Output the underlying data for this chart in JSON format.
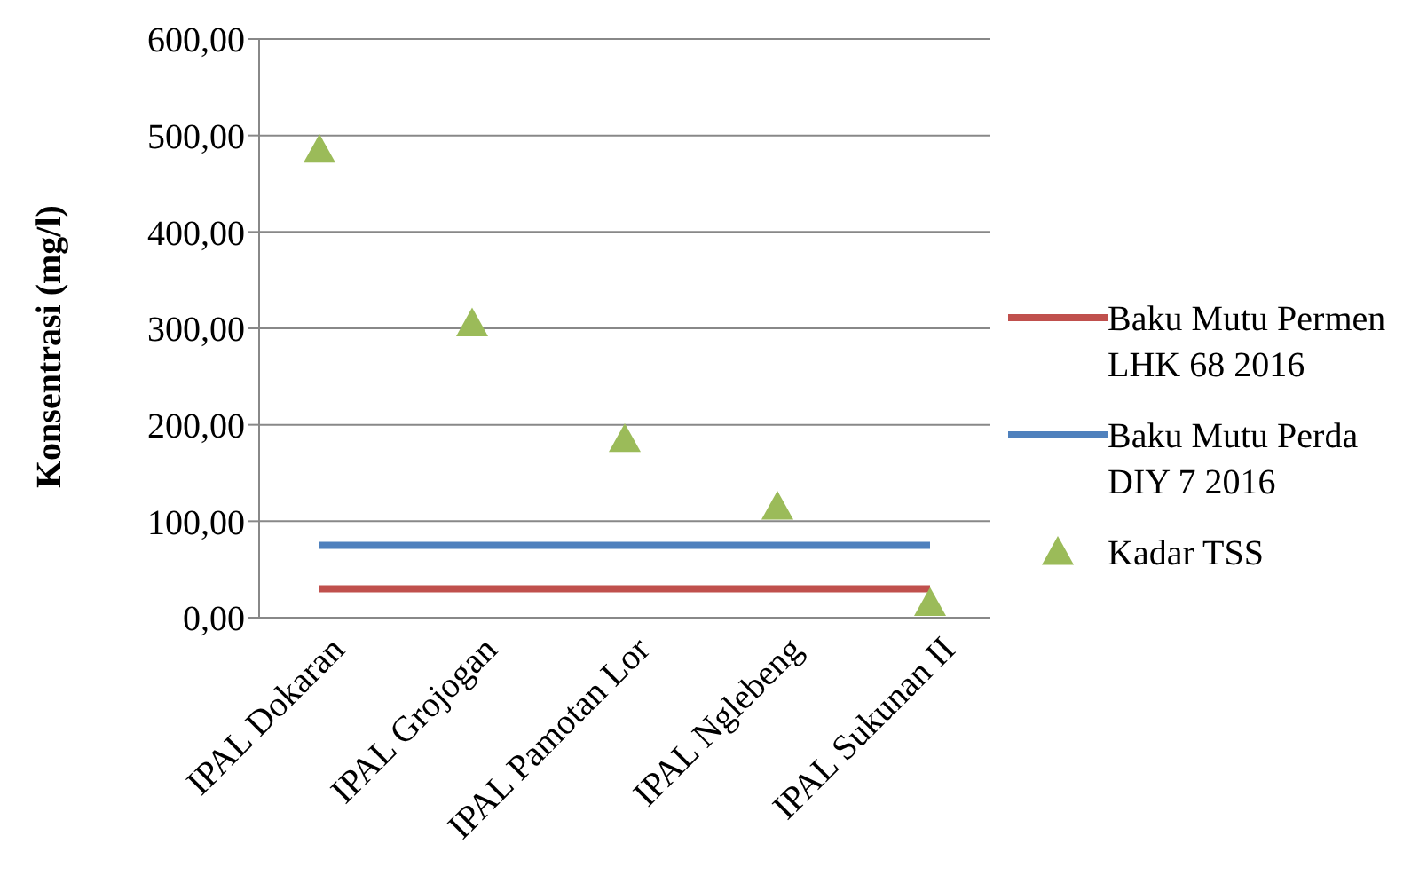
{
  "chart_data": {
    "type": "line",
    "ylabel": "Konsentrasi (mg/l)",
    "categories": [
      "IPAL Dokaran",
      "IPAL Grojogan",
      "IPAL Pamotan Lor",
      "IPAL Nglebeng",
      "IPAL Sukunan II"
    ],
    "series": [
      {
        "name": "Baku Mutu Permen LHK 68 2016",
        "color": "#c0504d",
        "marker": "none",
        "values": [
          30,
          30,
          30,
          30,
          30
        ]
      },
      {
        "name": "Baku Mutu Perda DIY 7 2016",
        "color": "#4f81bd",
        "marker": "none",
        "values": [
          75,
          75,
          75,
          75,
          75
        ]
      },
      {
        "name": "Kadar TSS",
        "type": "scatter",
        "color": "#9bbb59",
        "marker": "triangle",
        "values": [
          485,
          305,
          185,
          115,
          15
        ]
      }
    ],
    "ylim": [
      0,
      600
    ],
    "yticks": [
      {
        "value": 0,
        "label": "0,00"
      },
      {
        "value": 100,
        "label": "100,00"
      },
      {
        "value": 200,
        "label": "200,00"
      },
      {
        "value": 300,
        "label": "300,00"
      },
      {
        "value": 400,
        "label": "400,00"
      },
      {
        "value": 500,
        "label": "500,00"
      },
      {
        "value": 600,
        "label": "600,00"
      }
    ],
    "grid": "y",
    "legend": "right",
    "line_style": "solid"
  }
}
